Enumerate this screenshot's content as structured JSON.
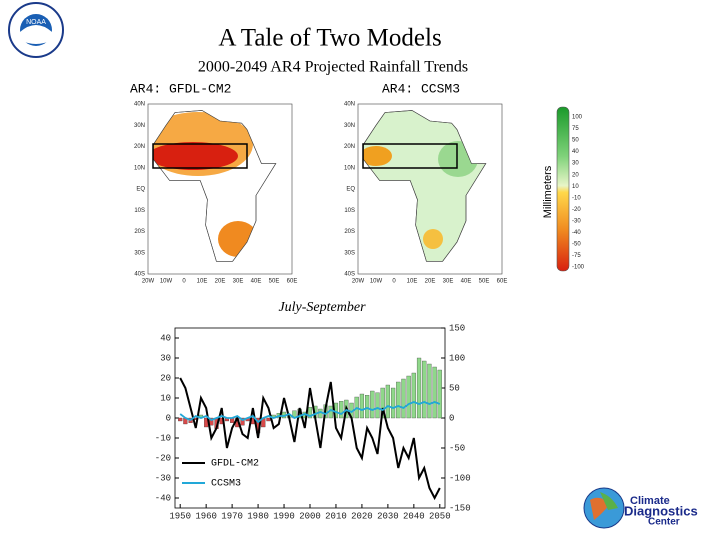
{
  "title": "A Tale of Two Models",
  "subtitle": "2000-2049 AR4 Projected Rainfall Trends",
  "season": "July-September",
  "logo_left": "NOAA",
  "logo_right": [
    "Climate",
    "Diagnostics",
    "Center"
  ],
  "maps": {
    "titles": [
      "AR4: GFDL-CM2",
      "AR4: CCSM3"
    ],
    "lat_labels": [
      "40N",
      "30N",
      "20N",
      "10N",
      "EQ",
      "10S",
      "20S",
      "30S",
      "40S"
    ],
    "lon_labels": [
      "20W",
      "10W",
      "0",
      "10E",
      "20E",
      "30E",
      "40E",
      "50E",
      "60E"
    ]
  },
  "colorbar": {
    "title": "Millimeters",
    "labels": [
      100,
      75,
      50,
      40,
      30,
      20,
      10,
      -10,
      -20,
      -30,
      -40,
      -50,
      -75,
      -100
    ]
  },
  "chart_data": {
    "type": "line",
    "x": [
      1950,
      1952,
      1954,
      1956,
      1958,
      1960,
      1962,
      1964,
      1966,
      1968,
      1970,
      1972,
      1974,
      1976,
      1978,
      1980,
      1982,
      1984,
      1986,
      1988,
      1990,
      1992,
      1994,
      1996,
      1998,
      2000,
      2002,
      2004,
      2006,
      2008,
      2010,
      2012,
      2014,
      2016,
      2018,
      2020,
      2022,
      2024,
      2026,
      2028,
      2030,
      2032,
      2034,
      2036,
      2038,
      2040,
      2042,
      2044,
      2046,
      2048,
      2050
    ],
    "xlim": [
      1948,
      2052
    ],
    "xticks": [
      1950,
      1960,
      1970,
      1980,
      1990,
      2000,
      2010,
      2020,
      2030,
      2040,
      2050
    ],
    "ylim": [
      -45,
      45
    ],
    "yticks": [
      -40,
      -30,
      -20,
      -10,
      0,
      10,
      20,
      30,
      40
    ],
    "y2lim": [
      -150,
      150
    ],
    "y2ticks": [
      -150,
      -100,
      -50,
      0,
      50,
      100,
      150
    ],
    "bars": {
      "axis": "y2",
      "positive_color": "#8fd88a",
      "negative_color": "#d84a4a",
      "values": [
        -5,
        -10,
        -8,
        -3,
        5,
        -15,
        -12,
        -18,
        -10,
        -5,
        -8,
        -15,
        -12,
        -5,
        -10,
        -25,
        -15,
        -5,
        5,
        8,
        10,
        5,
        12,
        15,
        10,
        18,
        20,
        15,
        22,
        20,
        25,
        28,
        30,
        25,
        35,
        40,
        38,
        45,
        42,
        50,
        55,
        50,
        60,
        65,
        70,
        75,
        100,
        95,
        90,
        85,
        80
      ]
    },
    "series": [
      {
        "name": "GFDL-CM2",
        "color": "#000000",
        "values": [
          20,
          15,
          5,
          -5,
          10,
          5,
          -10,
          -5,
          5,
          -15,
          -5,
          0,
          -8,
          -10,
          5,
          -10,
          10,
          5,
          -5,
          -3,
          10,
          0,
          -12,
          5,
          -5,
          15,
          0,
          -15,
          5,
          18,
          -5,
          -10,
          5,
          0,
          -15,
          -20,
          -5,
          -10,
          -18,
          5,
          -5,
          -10,
          -25,
          -15,
          -20,
          -10,
          -30,
          -25,
          -35,
          -40,
          -35
        ]
      },
      {
        "name": "CCSM3",
        "color": "#22a8d8",
        "values": [
          2,
          0,
          -1,
          1,
          0,
          1,
          -1,
          0,
          1,
          0,
          0,
          1,
          -1,
          0,
          1,
          -2,
          0,
          1,
          0,
          1,
          1,
          2,
          0,
          1,
          2,
          1,
          2,
          3,
          2,
          4,
          3,
          2,
          4,
          3,
          5,
          4,
          5,
          4,
          5,
          4,
          6,
          5,
          6,
          5,
          7,
          8,
          7,
          8,
          7,
          8,
          7
        ]
      }
    ]
  }
}
